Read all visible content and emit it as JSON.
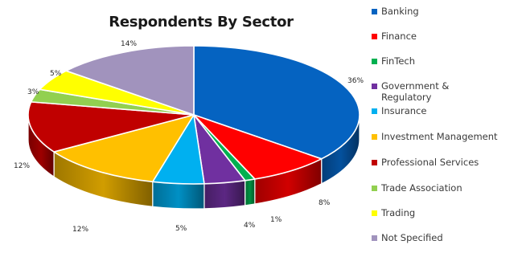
{
  "chart_data": {
    "type": "pie",
    "title": "Respondents By Sector",
    "legend_position": "right",
    "slices": [
      {
        "label": "Banking",
        "value": 36,
        "value_label": "36%",
        "color": "#0563C1"
      },
      {
        "label": "Finance",
        "value": 8,
        "value_label": "8%",
        "color": "#FF0000"
      },
      {
        "label": "FinTech",
        "value": 1,
        "value_label": "1%",
        "color": "#00B050"
      },
      {
        "label": "Government & Regulatory",
        "value": 4,
        "value_label": "4%",
        "color": "#7030A0"
      },
      {
        "label": "Insurance",
        "value": 5,
        "value_label": "5%",
        "color": "#00B0F0"
      },
      {
        "label": "Investment Management",
        "value": 12,
        "value_label": "12%",
        "color": "#FFC000"
      },
      {
        "label": "Professional Services",
        "value": 12,
        "value_label": "12%",
        "color": "#C00000"
      },
      {
        "label": "Trade Association",
        "value": 3,
        "value_label": "3%",
        "color": "#92D050"
      },
      {
        "label": "Trading",
        "value": 5,
        "value_label": "5%",
        "color": "#FFFF00"
      },
      {
        "label": "Not Specified",
        "value": 14,
        "value_label": "14%",
        "color": "#A193BD"
      }
    ]
  }
}
